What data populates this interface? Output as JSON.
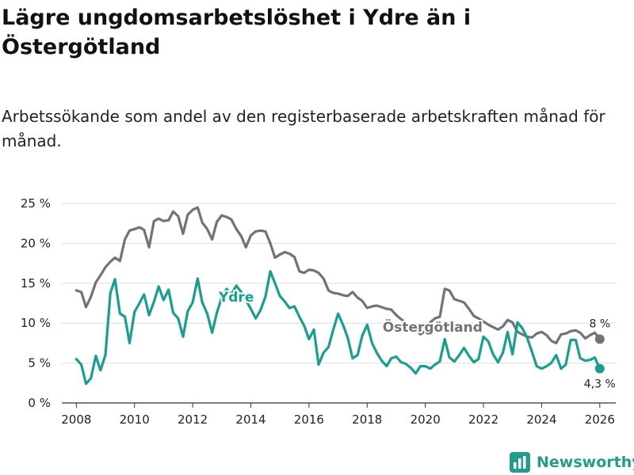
{
  "title": "Lägre ungdomsarbetslöshet i Ydre än i Östergötland",
  "subtitle": "Arbetssökande som andel av den registerbaserade arbetskraften månad för månad.",
  "brand": "Newsworthy",
  "colors": {
    "ydre": "#1a9e8f",
    "ostergotland": "#737277",
    "grid": "#dddddd",
    "axis": "#333333",
    "brand": "#239d8b"
  },
  "chart_data": {
    "type": "line",
    "title": "Lägre ungdomsarbetslöshet i Ydre än i Östergötland",
    "subtitle": "Arbetssökande som andel av den registerbaserade arbetskraften månad för månad.",
    "xlabel": "",
    "ylabel": "",
    "xlim": [
      2007.5,
      2026.55
    ],
    "ylim": [
      0,
      25
    ],
    "grid": true,
    "legend": "inline",
    "x_ticks": [
      2008,
      2010,
      2012,
      2014,
      2016,
      2018,
      2020,
      2022,
      2024,
      2026
    ],
    "x_tick_labels": [
      "2008",
      "2010",
      "2012",
      "2014",
      "2016",
      "2018",
      "2020",
      "2022",
      "2024",
      "2026"
    ],
    "y_ticks": [
      0,
      5,
      10,
      15,
      20,
      25
    ],
    "y_tick_labels": [
      "0 %",
      "5 %",
      "10 %",
      "15 %",
      "20 %",
      "25 %"
    ],
    "series": [
      {
        "name": "Östergötland",
        "label": "Östergötland",
        "end_label": "8 %",
        "x": [
          2008.0,
          2008.17,
          2008.33,
          2008.5,
          2008.67,
          2008.83,
          2009.0,
          2009.17,
          2009.33,
          2009.5,
          2009.67,
          2009.83,
          2010.0,
          2010.17,
          2010.33,
          2010.5,
          2010.67,
          2010.83,
          2011.0,
          2011.17,
          2011.33,
          2011.5,
          2011.67,
          2011.83,
          2012.0,
          2012.17,
          2012.33,
          2012.5,
          2012.67,
          2012.83,
          2013.0,
          2013.17,
          2013.33,
          2013.5,
          2013.67,
          2013.83,
          2014.0,
          2014.17,
          2014.33,
          2014.5,
          2014.67,
          2014.83,
          2015.0,
          2015.17,
          2015.33,
          2015.5,
          2015.67,
          2015.83,
          2016.0,
          2016.17,
          2016.33,
          2016.5,
          2016.67,
          2016.83,
          2017.0,
          2017.17,
          2017.33,
          2017.5,
          2017.67,
          2017.83,
          2018.0,
          2018.17,
          2018.33,
          2018.5,
          2018.67,
          2018.83,
          2019.0,
          2019.17,
          2019.33,
          2019.5,
          2019.67,
          2019.83,
          2020.0,
          2020.17,
          2020.33,
          2020.5,
          2020.67,
          2020.83,
          2021.0,
          2021.17,
          2021.33,
          2021.5,
          2021.67,
          2021.83,
          2022.0,
          2022.17,
          2022.33,
          2022.5,
          2022.67,
          2022.83,
          2023.0,
          2023.17,
          2023.33,
          2023.5,
          2023.67,
          2023.83,
          2024.0,
          2024.17,
          2024.33,
          2024.5,
          2024.67,
          2024.83,
          2025.0,
          2025.17,
          2025.33,
          2025.5,
          2025.67,
          2025.83,
          2026.0
        ],
        "values": [
          14.1,
          13.9,
          12.0,
          13.3,
          15.1,
          16.0,
          17.0,
          17.7,
          18.2,
          17.8,
          20.5,
          21.6,
          21.8,
          22.0,
          21.7,
          19.5,
          22.8,
          23.1,
          22.8,
          22.9,
          24.0,
          23.4,
          21.2,
          23.6,
          24.2,
          24.5,
          22.6,
          21.8,
          20.5,
          22.7,
          23.5,
          23.3,
          23.0,
          21.8,
          20.9,
          19.5,
          21.0,
          21.5,
          21.6,
          21.5,
          20.0,
          18.2,
          18.6,
          18.9,
          18.7,
          18.3,
          16.5,
          16.3,
          16.7,
          16.6,
          16.3,
          15.6,
          14.1,
          13.8,
          13.7,
          13.5,
          13.4,
          13.9,
          13.2,
          12.8,
          11.9,
          12.1,
          12.2,
          12.0,
          11.8,
          11.7,
          11.0,
          10.5,
          10.0,
          9.4,
          9.2,
          8.6,
          9.0,
          10.1,
          10.6,
          10.8,
          14.3,
          14.1,
          13.0,
          12.8,
          12.6,
          11.8,
          10.9,
          10.6,
          10.2,
          9.8,
          9.5,
          9.2,
          9.6,
          10.4,
          10.1,
          8.9,
          8.6,
          8.3,
          8.2,
          8.7,
          8.9,
          8.5,
          7.8,
          7.5,
          8.6,
          8.7,
          9.0,
          9.1,
          8.8,
          8.1,
          8.5,
          8.8,
          8.0
        ]
      },
      {
        "name": "Ydre",
        "label": "Ydre",
        "end_label": "4,3 %",
        "x": [
          2008.0,
          2008.17,
          2008.33,
          2008.5,
          2008.67,
          2008.83,
          2009.0,
          2009.17,
          2009.33,
          2009.5,
          2009.67,
          2009.83,
          2010.0,
          2010.17,
          2010.33,
          2010.5,
          2010.67,
          2010.83,
          2011.0,
          2011.17,
          2011.33,
          2011.5,
          2011.67,
          2011.83,
          2012.0,
          2012.17,
          2012.33,
          2012.5,
          2012.67,
          2012.83,
          2013.0,
          2013.17,
          2013.33,
          2013.5,
          2013.67,
          2013.83,
          2014.0,
          2014.17,
          2014.33,
          2014.5,
          2014.67,
          2014.83,
          2015.0,
          2015.17,
          2015.33,
          2015.5,
          2015.67,
          2015.83,
          2016.0,
          2016.17,
          2016.33,
          2016.5,
          2016.67,
          2016.83,
          2017.0,
          2017.17,
          2017.33,
          2017.5,
          2017.67,
          2017.83,
          2018.0,
          2018.17,
          2018.33,
          2018.5,
          2018.67,
          2018.83,
          2019.0,
          2019.17,
          2019.33,
          2019.5,
          2019.67,
          2019.83,
          2020.0,
          2020.17,
          2020.33,
          2020.5,
          2020.67,
          2020.83,
          2021.0,
          2021.17,
          2021.33,
          2021.5,
          2021.67,
          2021.83,
          2022.0,
          2022.17,
          2022.33,
          2022.5,
          2022.67,
          2022.83,
          2023.0,
          2023.17,
          2023.33,
          2023.5,
          2023.67,
          2023.83,
          2024.0,
          2024.17,
          2024.33,
          2024.5,
          2024.67,
          2024.83,
          2025.0,
          2025.17,
          2025.33,
          2025.5,
          2025.67,
          2025.83,
          2026.0
        ],
        "values": [
          5.5,
          4.8,
          2.4,
          3.1,
          5.9,
          4.1,
          6.0,
          13.8,
          15.5,
          11.2,
          10.8,
          7.5,
          11.4,
          12.5,
          13.6,
          11.0,
          12.7,
          14.6,
          12.9,
          14.2,
          11.3,
          10.6,
          8.3,
          11.5,
          12.6,
          15.6,
          12.6,
          11.2,
          8.8,
          11.3,
          13.2,
          14.3,
          13.6,
          14.7,
          13.9,
          12.9,
          11.8,
          10.6,
          11.6,
          13.3,
          16.5,
          15.0,
          13.4,
          12.7,
          11.9,
          12.1,
          10.8,
          9.7,
          8.0,
          9.2,
          4.8,
          6.3,
          7.0,
          9.1,
          11.2,
          9.8,
          8.2,
          5.6,
          6.0,
          8.4,
          9.8,
          7.5,
          6.3,
          5.3,
          4.6,
          5.6,
          5.8,
          5.1,
          4.9,
          4.4,
          3.7,
          4.6,
          4.6,
          4.3,
          4.8,
          5.2,
          8.0,
          5.7,
          5.2,
          6.0,
          6.9,
          5.9,
          5.1,
          5.5,
          8.3,
          7.7,
          6.1,
          5.1,
          6.3,
          8.9,
          6.1,
          10.1,
          9.4,
          8.2,
          6.4,
          4.6,
          4.3,
          4.6,
          5.0,
          6.0,
          4.3,
          4.8,
          7.9,
          7.9,
          5.6,
          5.3,
          5.4,
          5.7,
          4.3
        ]
      }
    ]
  }
}
